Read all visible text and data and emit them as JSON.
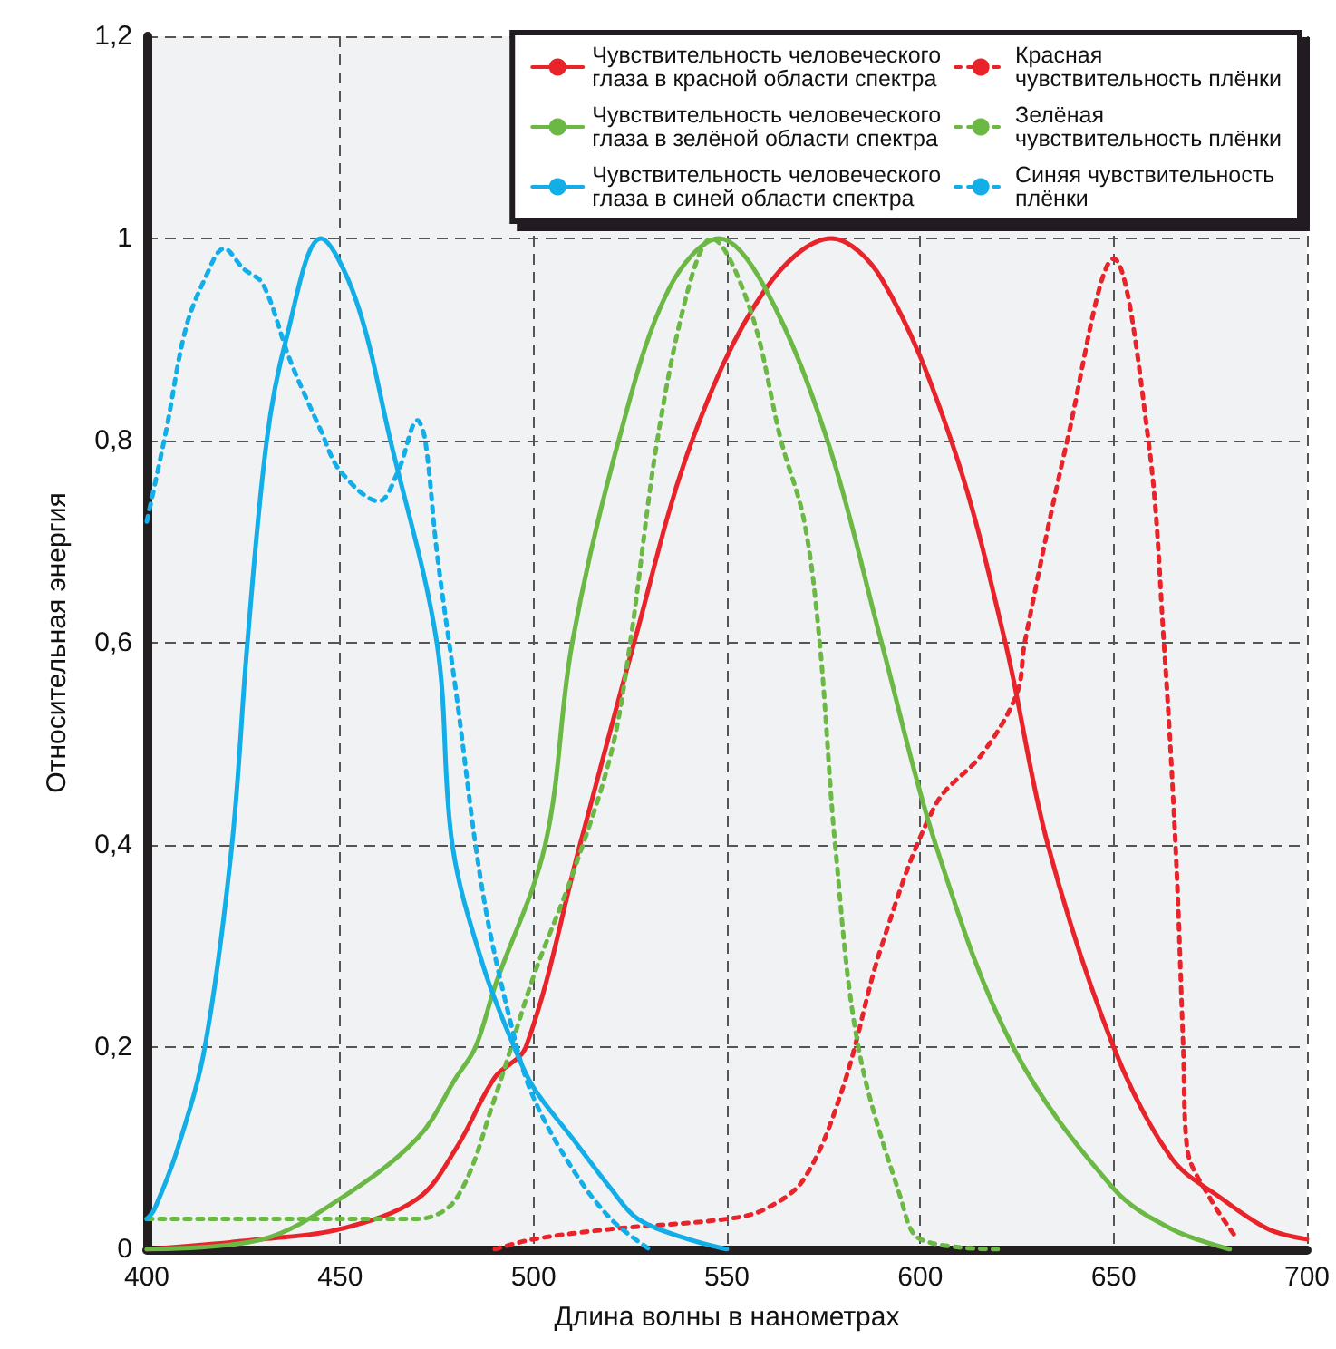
{
  "chart_data": {
    "type": "line",
    "xlabel": "Длина волны в нанометрах",
    "ylabel": "Относительная энергия",
    "xlim": [
      400,
      700
    ],
    "xticks": [
      400,
      450,
      500,
      550,
      600,
      650,
      700
    ],
    "ylim": [
      0,
      1.2
    ],
    "yticks": [
      0,
      {
        "value": 0.2,
        "label": "0,2"
      },
      {
        "value": 0.4,
        "label": "0,4"
      },
      {
        "value": 0.6,
        "label": "0,6"
      },
      {
        "value": 0.8,
        "label": "0,8"
      },
      1,
      {
        "value": 1.2,
        "label": "1,2"
      }
    ],
    "grid": true,
    "legend": "top right",
    "marker": "none",
    "series": [
      {
        "name": "Чувствительность человеческого глаза в красной области спектра",
        "color": "#e8232a",
        "line_style": "solid",
        "x": [
          400,
          430,
          450,
          470,
          480,
          490,
          498,
          512,
          526,
          541,
          560,
          577,
          590,
          608,
          622,
          633,
          650,
          665,
          678,
          690,
          700
        ],
        "values": [
          0,
          0.01,
          0.02,
          0.05,
          0.1,
          0.17,
          0.2,
          0.4,
          0.6,
          0.8,
          0.95,
          1,
          0.96,
          0.8,
          0.6,
          0.4,
          0.2,
          0.09,
          0.05,
          0.02,
          0.01
        ]
      },
      {
        "name": "Красная чувствительность плёнки",
        "color": "#e8232a",
        "line_style": "dotted",
        "x": [
          490,
          500,
          520,
          550,
          560,
          570,
          580,
          590,
          604,
          616,
          625,
          627,
          638,
          650,
          659,
          663,
          666,
          668,
          669,
          675,
          682
        ],
        "values": [
          0,
          0.01,
          0.02,
          0.03,
          0.04,
          0.07,
          0.16,
          0.3,
          0.44,
          0.49,
          0.55,
          0.6,
          0.8,
          0.98,
          0.8,
          0.6,
          0.4,
          0.2,
          0.1,
          0.05,
          0.01
        ]
      },
      {
        "name": "Чувствительность человеческого глаза в зелёной области спектра",
        "color": "#6cb845",
        "line_style": "solid",
        "x": [
          400,
          430,
          450,
          470,
          480,
          485,
          490,
          503,
          510,
          522,
          535,
          548,
          560,
          576,
          590,
          604,
          624,
          650,
          665,
          680
        ],
        "values": [
          0,
          0.01,
          0.05,
          0.11,
          0.17,
          0.2,
          0.26,
          0.4,
          0.6,
          0.8,
          0.95,
          1,
          0.95,
          0.8,
          0.6,
          0.4,
          0.2,
          0.06,
          0.02,
          0
        ]
      },
      {
        "name": "Зелёная чувствительность плёнки",
        "color": "#6cb845",
        "line_style": "dotted",
        "x": [
          400,
          450,
          470,
          480,
          490,
          500,
          510,
          520,
          525,
          532,
          540,
          546,
          556,
          564,
          570,
          574,
          578,
          584,
          595,
          600,
          620
        ],
        "values": [
          0.03,
          0.03,
          0.03,
          0.05,
          0.15,
          0.27,
          0.37,
          0.49,
          0.6,
          0.8,
          0.95,
          1,
          0.93,
          0.8,
          0.72,
          0.6,
          0.4,
          0.2,
          0.05,
          0.01,
          0
        ]
      },
      {
        "name": "Чувствительность человеческого глаза в синей области спектра",
        "color": "#13aee8",
        "line_style": "solid",
        "x": [
          400,
          402,
          408,
          415,
          422,
          426,
          431,
          436,
          445,
          454,
          463,
          475,
          479,
          487,
          495,
          500,
          510,
          520,
          527,
          540,
          550
        ],
        "values": [
          0.03,
          0.04,
          0.1,
          0.2,
          0.4,
          0.6,
          0.8,
          0.9,
          1,
          0.94,
          0.8,
          0.6,
          0.4,
          0.28,
          0.2,
          0.16,
          0.11,
          0.06,
          0.03,
          0.01,
          0
        ]
      },
      {
        "name": "Синяя чувствительность плёнки",
        "color": "#13aee8",
        "line_style": "dotted",
        "x": [
          400,
          405,
          410,
          415,
          420,
          425,
          430,
          437,
          445,
          450,
          460,
          465,
          470,
          472,
          475,
          480,
          487,
          495,
          500,
          510,
          520,
          530
        ],
        "values": [
          0.72,
          0.81,
          0.91,
          0.96,
          0.99,
          0.97,
          0.955,
          0.88,
          0.81,
          0.77,
          0.74,
          0.77,
          0.82,
          0.8,
          0.69,
          0.55,
          0.35,
          0.21,
          0.15,
          0.08,
          0.03,
          0
        ]
      }
    ]
  }
}
